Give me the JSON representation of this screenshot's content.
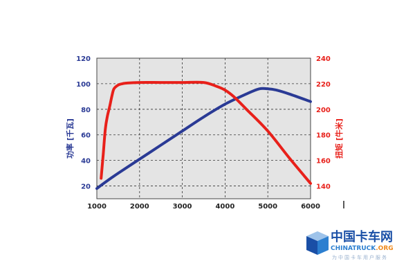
{
  "chart_data": {
    "type": "line",
    "x": [
      1000,
      1100,
      1200,
      1300,
      1400,
      1500,
      1600,
      1700,
      1800,
      2000,
      2500,
      3000,
      3500,
      4000,
      4500,
      4800,
      5000,
      5200,
      5500,
      6000
    ],
    "x_ticks": [
      "1000",
      "2000",
      "3000",
      "4000",
      "5000",
      "6000"
    ],
    "xlim": [
      1000,
      6000
    ],
    "y_left": {
      "label": "功率 [千瓦]",
      "ticks": [
        "20",
        "40",
        "60",
        "80",
        "100",
        "120"
      ],
      "lim": [
        10,
        120
      ],
      "color": "#2a3a95"
    },
    "y_right": {
      "label": "扭矩 [牛米]",
      "ticks": [
        "140",
        "160",
        "180",
        "200",
        "220",
        "240"
      ],
      "lim": [
        130,
        240
      ],
      "color": "#e8201a"
    },
    "series": [
      {
        "axis": "left",
        "color": "#2a3a95",
        "x": [
          1000,
          1200,
          1500,
          2000,
          2500,
          3000,
          3500,
          4000,
          4500,
          4800,
          5000,
          5200,
          5500,
          6000
        ],
        "values": [
          18,
          23,
          30,
          41,
          52,
          63,
          74,
          84,
          92,
          96,
          96,
          95,
          92,
          86
        ]
      },
      {
        "axis": "right",
        "color": "#e8201a",
        "x": [
          1100,
          1150,
          1200,
          1250,
          1300,
          1350,
          1400,
          1500,
          1600,
          1700,
          2000,
          2500,
          3000,
          3500,
          3800,
          4000,
          4200,
          4500,
          5000,
          5500,
          6000
        ],
        "values": [
          146,
          165,
          185,
          195,
          202,
          210,
          216,
          219,
          220,
          220.5,
          221,
          221,
          221,
          221,
          218,
          215,
          210,
          200,
          183,
          162,
          142
        ]
      }
    ],
    "grid": true,
    "plot_background": "#e4e4e4"
  },
  "watermark": {
    "brand_cn": "中国卡车网",
    "brand_en": "CHINATRUCK",
    "brand_suffix": ".ORG",
    "slogan": "为中国卡车用户服务",
    "colors": {
      "primary": "#1a4fa6",
      "accent": "#2c7fd0",
      "light": "#9ec3ea"
    }
  }
}
